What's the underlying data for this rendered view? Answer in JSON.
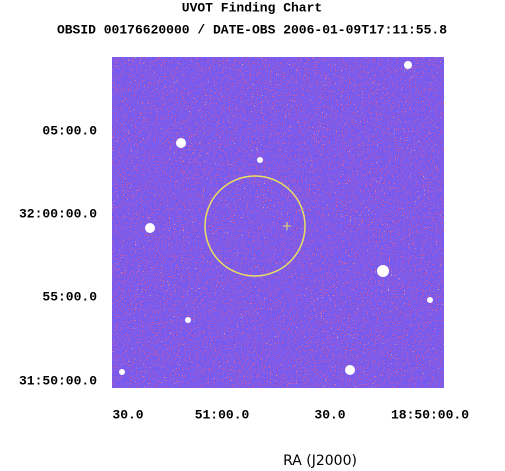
{
  "title": "UVOT Finding Chart",
  "subtitle": "OBSID 00176620000 / DATE-OBS 2006-01-09T17:11:55.8",
  "y_labels": [
    "05:00.0",
    "32:00:00.0",
    "55:00.0",
    "31:50:00.0"
  ],
  "x_labels": [
    "30.0",
    "51:00.0",
    "30.0",
    "18:50:00.0"
  ],
  "x_axis_label": "RA (J2000)"
}
